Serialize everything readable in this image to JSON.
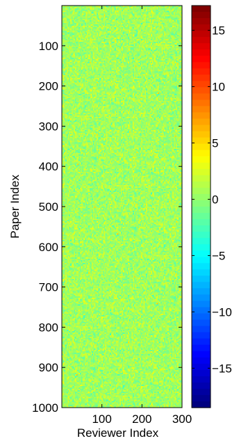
{
  "chart_data": {
    "type": "heatmap",
    "title": "",
    "xlabel": "Reviewer Index",
    "ylabel": "Paper Index",
    "xlim": [
      1,
      300
    ],
    "ylim": [
      1,
      1000
    ],
    "y_reversed": true,
    "xticks": [
      100,
      200,
      300
    ],
    "xtick_labels": [
      "100",
      "200",
      "300"
    ],
    "yticks": [
      100,
      200,
      300,
      400,
      500,
      600,
      700,
      800,
      900,
      1000
    ],
    "ytick_labels": [
      "100",
      "200",
      "300",
      "400",
      "500",
      "600",
      "700",
      "800",
      "900",
      "1000"
    ],
    "colorbar": {
      "colormap": "jet",
      "range": [
        -18.5,
        17.2
      ],
      "ticks": [
        -15,
        -10,
        -5,
        0,
        5,
        10,
        15
      ],
      "tick_labels": [
        "−15",
        "−10",
        "−5",
        "0",
        "5",
        "10",
        "15"
      ],
      "placement": "right"
    },
    "value_distribution": {
      "description_of_values": "dense noise matrix, values mostly near 0",
      "typical_range": [
        -3,
        5
      ]
    }
  }
}
